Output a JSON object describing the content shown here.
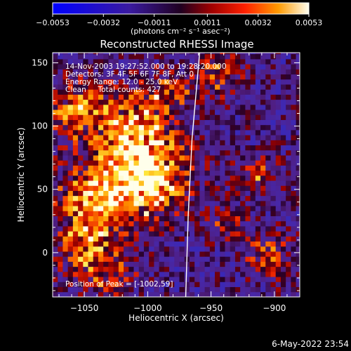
{
  "chart_data": {
    "type": "heatmap",
    "title": "Reconstructed RHESSI Image",
    "xlabel": "Heliocentric X (arcsec)",
    "ylabel": "Heliocentric Y (arcsec)",
    "xlim": [
      -1075,
      -880
    ],
    "ylim": [
      -35,
      158
    ],
    "x_ticks": [
      -1050,
      -1000,
      -950,
      -900
    ],
    "y_ticks": [
      0,
      50,
      100,
      150
    ],
    "x_tick_labels": [
      "−1050",
      "−1000",
      "−950",
      "−900"
    ],
    "y_tick_labels": [
      "0",
      "50",
      "100",
      "150"
    ],
    "colorbar": {
      "min": -0.0053,
      "max": 0.0053,
      "ticks": [
        -0.0053,
        -0.0032,
        -0.0011,
        0.0011,
        0.0032,
        0.0053
      ],
      "tick_labels": [
        "−0.0053",
        "−0.0032",
        "−0.0011",
        "0.0011",
        "0.0032",
        "0.0053"
      ],
      "unit_label": "(photons cm⁻² s⁻¹ asec⁻²)"
    },
    "annotations": [
      "14-Nov-2003 19:27:52.000 to 19:28:20.000",
      "Detectors: 3F 4F 5F 6F 7F 8F, Att 0",
      "Energy Range: 12.0 - 25.0 keV",
      "Clean     Total counts: 427"
    ],
    "peak_label": "Position of Peak = [-1002,59]",
    "peak_position": [
      -1002,
      59
    ],
    "limb_curve": [
      [
        -970,
        -35
      ],
      [
        -968,
        30
      ],
      [
        -965,
        90
      ],
      [
        -959,
        158
      ]
    ],
    "grid": false
  },
  "footer": {
    "timestamp": "6-May-2022 23:54"
  }
}
